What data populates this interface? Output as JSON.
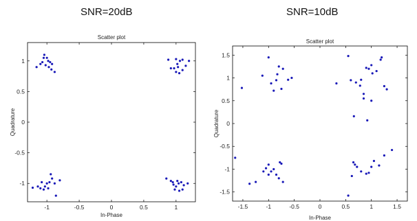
{
  "headings": {
    "left": "SNR=20dB",
    "right": "SNR=10dB"
  },
  "colors": {
    "point": "#1a1ab8",
    "axes": "#000000"
  },
  "chart_data": [
    {
      "type": "scatter",
      "heading": "SNR=20dB",
      "title": "Scatter plot",
      "xlabel": "In-Phase",
      "ylabel": "Quadrature",
      "xlim": [
        -1.3,
        1.3
      ],
      "ylim": [
        -1.3,
        1.3
      ],
      "xticks": [
        -1,
        -0.5,
        0,
        0.5,
        1
      ],
      "yticks": [
        -1,
        -0.5,
        0,
        0.5,
        1
      ],
      "xtick_labels": [
        "-1",
        "-0.5",
        "0",
        "0.5",
        "1"
      ],
      "ytick_labels": [
        "-1",
        "-0.5",
        "0",
        "0.5",
        "1"
      ],
      "grid": false,
      "points": [
        [
          -1.16,
          0.9
        ],
        [
          -1.1,
          0.95
        ],
        [
          -1.05,
          1.05
        ],
        [
          -1.04,
          1.1
        ],
        [
          -1.0,
          1.05
        ],
        [
          -0.98,
          1.0
        ],
        [
          -0.95,
          0.98
        ],
        [
          -1.02,
          0.93
        ],
        [
          -0.97,
          0.9
        ],
        [
          -0.93,
          0.86
        ],
        [
          -0.88,
          0.82
        ],
        [
          -0.92,
          0.95
        ],
        [
          -1.07,
          0.98
        ],
        [
          0.88,
          1.02
        ],
        [
          0.92,
          0.88
        ],
        [
          0.97,
          0.88
        ],
        [
          1.02,
          0.95
        ],
        [
          1.06,
          1.0
        ],
        [
          1.1,
          1.02
        ],
        [
          1.0,
          0.82
        ],
        [
          1.05,
          0.8
        ],
        [
          1.1,
          0.85
        ],
        [
          1.15,
          0.92
        ],
        [
          1.2,
          1.0
        ],
        [
          1.0,
          1.03
        ],
        [
          1.03,
          0.9
        ],
        [
          -1.22,
          -1.07
        ],
        [
          -1.14,
          -1.05
        ],
        [
          -1.1,
          -1.08
        ],
        [
          -1.05,
          -1.1
        ],
        [
          -1.0,
          -1.0
        ],
        [
          -0.96,
          -0.98
        ],
        [
          -0.92,
          -0.92
        ],
        [
          -0.88,
          -1.0
        ],
        [
          -1.03,
          -1.05
        ],
        [
          -0.98,
          -1.08
        ],
        [
          -0.94,
          -0.85
        ],
        [
          -0.8,
          -0.95
        ],
        [
          -0.86,
          -1.2
        ],
        [
          -1.08,
          -0.98
        ],
        [
          0.85,
          -0.92
        ],
        [
          0.92,
          -0.96
        ],
        [
          0.96,
          -1.02
        ],
        [
          1.0,
          -1.05
        ],
        [
          1.04,
          -1.0
        ],
        [
          1.08,
          -0.98
        ],
        [
          1.12,
          -1.03
        ],
        [
          0.98,
          -1.1
        ],
        [
          1.05,
          -1.12
        ],
        [
          1.1,
          -1.1
        ],
        [
          1.18,
          -1.0
        ],
        [
          0.95,
          -0.98
        ],
        [
          1.02,
          -0.96
        ]
      ]
    },
    {
      "type": "scatter",
      "heading": "SNR=10dB",
      "title": "Scatter plot",
      "xlabel": "In-Phase",
      "ylabel": "Quadrature",
      "xlim": [
        -1.7,
        1.7
      ],
      "ylim": [
        -1.7,
        1.7
      ],
      "xticks": [
        -1.5,
        -1,
        -0.5,
        0,
        0.5,
        1,
        1.5
      ],
      "yticks": [
        -1.5,
        -1,
        -0.5,
        0,
        0.5,
        1,
        1.5
      ],
      "xtick_labels": [
        "-1.5",
        "-1",
        "-0.5",
        "0",
        "0.5",
        "1",
        "1.5"
      ],
      "ytick_labels": [
        "-1.5",
        "-1",
        "-0.5",
        "0",
        "0.5",
        "1",
        "1.5"
      ],
      "grid": false,
      "points": [
        [
          -1.52,
          0.78
        ],
        [
          -1.12,
          1.05
        ],
        [
          -1.0,
          1.45
        ],
        [
          -0.95,
          0.88
        ],
        [
          -0.9,
          0.72
        ],
        [
          -0.85,
          0.95
        ],
        [
          -0.83,
          1.08
        ],
        [
          -0.8,
          1.25
        ],
        [
          -0.75,
          0.76
        ],
        [
          -0.72,
          1.2
        ],
        [
          -0.55,
          1.0
        ],
        [
          -0.62,
          0.96
        ],
        [
          0.32,
          0.88
        ],
        [
          0.55,
          1.48
        ],
        [
          0.6,
          0.95
        ],
        [
          0.66,
          0.16
        ],
        [
          0.7,
          0.9
        ],
        [
          0.78,
          0.83
        ],
        [
          0.8,
          0.96
        ],
        [
          0.85,
          0.65
        ],
        [
          0.9,
          1.22
        ],
        [
          0.95,
          1.2
        ],
        [
          1.0,
          1.28
        ],
        [
          1.02,
          1.1
        ],
        [
          1.1,
          1.15
        ],
        [
          1.18,
          1.4
        ],
        [
          1.2,
          1.45
        ],
        [
          1.25,
          0.82
        ],
        [
          1.3,
          0.75
        ],
        [
          0.92,
          0.07
        ],
        [
          1.0,
          0.5
        ],
        [
          0.85,
          0.55
        ],
        [
          -1.65,
          -0.75
        ],
        [
          -1.37,
          -1.32
        ],
        [
          -1.25,
          -1.28
        ],
        [
          -1.1,
          -1.05
        ],
        [
          -1.05,
          -0.98
        ],
        [
          -1.0,
          -0.9
        ],
        [
          -0.95,
          -1.05
        ],
        [
          -0.9,
          -1.0
        ],
        [
          -0.85,
          -1.12
        ],
        [
          -0.8,
          -1.2
        ],
        [
          -0.78,
          -0.85
        ],
        [
          -0.75,
          -0.88
        ],
        [
          -0.72,
          -1.28
        ],
        [
          -1.0,
          -1.12
        ],
        [
          0.55,
          -1.58
        ],
        [
          0.62,
          -1.15
        ],
        [
          0.65,
          -0.85
        ],
        [
          0.68,
          -0.9
        ],
        [
          0.72,
          -0.95
        ],
        [
          0.8,
          -1.05
        ],
        [
          0.9,
          -1.1
        ],
        [
          0.95,
          -1.08
        ],
        [
          1.0,
          -0.95
        ],
        [
          1.05,
          -0.82
        ],
        [
          1.15,
          -0.92
        ],
        [
          1.25,
          -0.7
        ],
        [
          1.4,
          -0.58
        ]
      ]
    }
  ]
}
